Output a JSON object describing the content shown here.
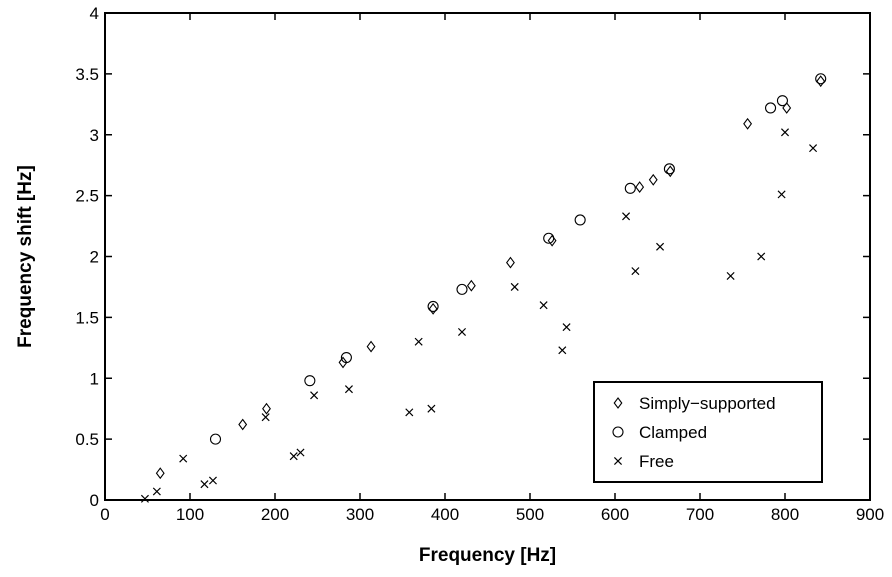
{
  "chart_data": {
    "type": "scatter",
    "title": "",
    "xlabel": "Frequency [Hz]",
    "ylabel": "Frequency shift [Hz]",
    "xlim": [
      0,
      900
    ],
    "ylim": [
      0,
      4
    ],
    "xticks": [
      0,
      100,
      200,
      300,
      400,
      500,
      600,
      700,
      800,
      900
    ],
    "yticks": [
      0,
      0.5,
      1,
      1.5,
      2,
      2.5,
      3,
      3.5,
      4
    ],
    "xtick_labels": [
      "0",
      "100",
      "200",
      "300",
      "400",
      "500",
      "600",
      "700",
      "800",
      "900"
    ],
    "ytick_labels": [
      "0",
      "0.5",
      "1",
      "1.5",
      "2",
      "2.5",
      "3",
      "3.5",
      "4"
    ],
    "grid": false,
    "legend_position": "bottom-right",
    "series": [
      {
        "name": "Simply−supported",
        "marker": "diamond",
        "x": [
          65,
          162,
          190,
          280,
          313,
          386,
          431,
          477,
          526,
          629,
          645,
          665,
          756,
          802,
          842
        ],
        "y": [
          0.22,
          0.62,
          0.75,
          1.13,
          1.26,
          1.57,
          1.76,
          1.95,
          2.13,
          2.57,
          2.63,
          2.7,
          3.09,
          3.22,
          3.44
        ]
      },
      {
        "name": "Clamped",
        "marker": "circle",
        "x": [
          130,
          241,
          284,
          386,
          420,
          522,
          559,
          618,
          664,
          783,
          797,
          842
        ],
        "y": [
          0.5,
          0.98,
          1.17,
          1.59,
          1.73,
          2.15,
          2.3,
          2.56,
          2.72,
          3.22,
          3.28,
          3.46
        ]
      },
      {
        "name": "Free",
        "marker": "cross",
        "x": [
          47,
          61,
          92,
          117,
          127,
          189,
          222,
          230,
          246,
          287,
          358,
          369,
          384,
          420,
          482,
          516,
          538,
          543,
          613,
          624,
          653,
          736,
          772,
          796,
          800,
          833
        ],
        "y": [
          0.01,
          0.07,
          0.34,
          0.13,
          0.16,
          0.68,
          0.36,
          0.39,
          0.86,
          0.91,
          0.72,
          1.3,
          0.75,
          1.38,
          1.75,
          1.6,
          1.23,
          1.42,
          2.33,
          1.88,
          2.08,
          1.84,
          2.0,
          2.51,
          3.02,
          2.89
        ]
      }
    ]
  }
}
